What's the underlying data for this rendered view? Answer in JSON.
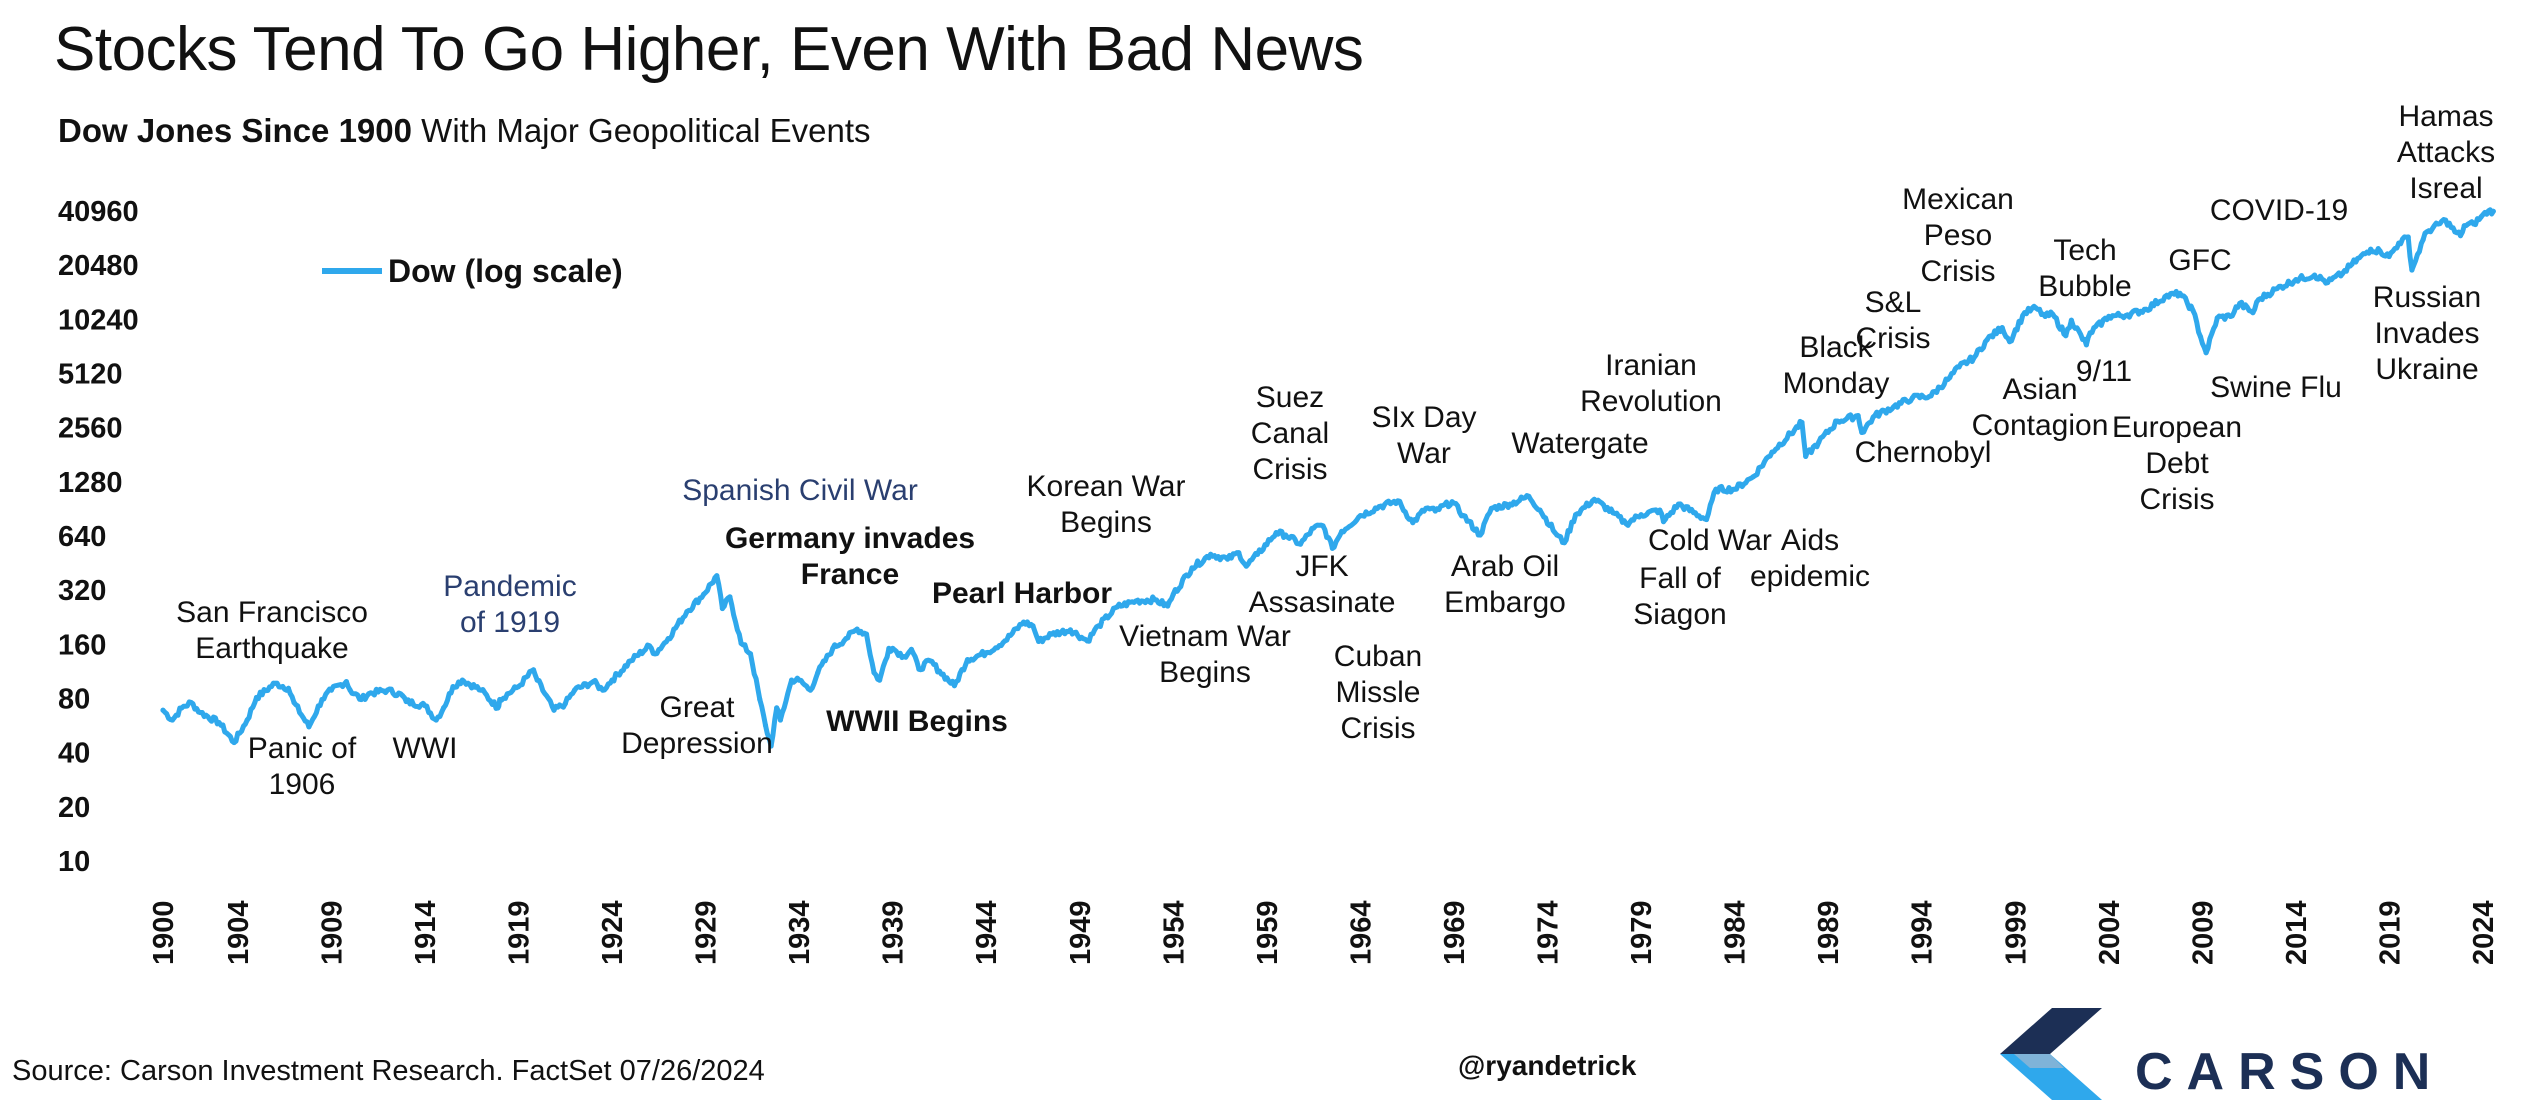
{
  "title": "Stocks Tend To Go Higher, Even With Bad News",
  "subtitle_bold": "Dow Jones Since 1900",
  "subtitle_rest": " With Major Geopolitical Events",
  "source": "Source: Carson Investment Research. FactSet 07/26/2024",
  "handle": "@ryandetrick",
  "logo_text": "CARSON",
  "colors": {
    "line": "#2fa8ec",
    "text": "#111111",
    "blue_text": "#2a3f70",
    "logo_dark": "#1c2f55",
    "logo_light": "#2fa8ec"
  },
  "chart_data": {
    "type": "line",
    "title": "",
    "xlabel": "",
    "ylabel": "",
    "y_scale": "log2",
    "ylim": [
      10,
      40960
    ],
    "xlim": [
      1900,
      2024
    ],
    "y_ticks": [
      "10",
      "20",
      "40",
      "80",
      "160",
      "320",
      "640",
      "1280",
      "2560",
      "5120",
      "10240",
      "20480",
      "40960"
    ],
    "x_ticks": [
      "1900",
      "1904",
      "1909",
      "1914",
      "1919",
      "1924",
      "1929",
      "1934",
      "1939",
      "1944",
      "1949",
      "1954",
      "1959",
      "1964",
      "1969",
      "1974",
      "1979",
      "1984",
      "1989",
      "1994",
      "1999",
      "2004",
      "2009",
      "2014",
      "2019",
      "2024"
    ],
    "legend": {
      "label": "Dow (log scale)",
      "position": "top-left"
    },
    "series": [
      {
        "name": "Dow (log scale)",
        "points": [
          [
            1900,
            68
          ],
          [
            1900.5,
            60
          ],
          [
            1901,
            70
          ],
          [
            1901.5,
            75
          ],
          [
            1902,
            66
          ],
          [
            1903,
            58
          ],
          [
            1903.8,
            45
          ],
          [
            1904.5,
            60
          ],
          [
            1905,
            80
          ],
          [
            1906,
            96
          ],
          [
            1906.7,
            90
          ],
          [
            1907,
            75
          ],
          [
            1907.8,
            55
          ],
          [
            1908.5,
            78
          ],
          [
            1909,
            88
          ],
          [
            1909.8,
            98
          ],
          [
            1910,
            88
          ],
          [
            1910.6,
            78
          ],
          [
            1911,
            84
          ],
          [
            1912,
            88
          ],
          [
            1912.8,
            82
          ],
          [
            1913,
            76
          ],
          [
            1914,
            72
          ],
          [
            1914.6,
            60
          ],
          [
            1915,
            70
          ],
          [
            1915.5,
            92
          ],
          [
            1916,
            100
          ],
          [
            1917,
            88
          ],
          [
            1917.9,
            70
          ],
          [
            1918,
            78
          ],
          [
            1919,
            92
          ],
          [
            1919.8,
            114
          ],
          [
            1920,
            100
          ],
          [
            1920.9,
            68
          ],
          [
            1921.5,
            74
          ],
          [
            1922,
            88
          ],
          [
            1923,
            98
          ],
          [
            1923.5,
            88
          ],
          [
            1924,
            100
          ],
          [
            1925,
            128
          ],
          [
            1926,
            155
          ],
          [
            1926.3,
            140
          ],
          [
            1927,
            170
          ],
          [
            1928,
            240
          ],
          [
            1928.9,
            300
          ],
          [
            1929.6,
            380
          ],
          [
            1929.9,
            250
          ],
          [
            1930.3,
            290
          ],
          [
            1930.9,
            160
          ],
          [
            1931.4,
            140
          ],
          [
            1931.9,
            78
          ],
          [
            1932.2,
            56
          ],
          [
            1932.5,
            43
          ],
          [
            1932.8,
            70
          ],
          [
            1933,
            60
          ],
          [
            1933.6,
            100
          ],
          [
            1934,
            100
          ],
          [
            1934.6,
            88
          ],
          [
            1935,
            110
          ],
          [
            1935.8,
            150
          ],
          [
            1936.5,
            170
          ],
          [
            1937.1,
            192
          ],
          [
            1937.6,
            180
          ],
          [
            1938,
            110
          ],
          [
            1938.3,
            100
          ],
          [
            1938.8,
            150
          ],
          [
            1939,
            150
          ],
          [
            1939.6,
            135
          ],
          [
            1940,
            148
          ],
          [
            1940.4,
            115
          ],
          [
            1941,
            128
          ],
          [
            1941.5,
            112
          ],
          [
            1942.3,
            93
          ],
          [
            1943,
            130
          ],
          [
            1944,
            142
          ],
          [
            1945,
            165
          ],
          [
            1946,
            210
          ],
          [
            1946.5,
            200
          ],
          [
            1946.8,
            164
          ],
          [
            1947.5,
            180
          ],
          [
            1948.5,
            190
          ],
          [
            1949.4,
            165
          ],
          [
            1950,
            200
          ],
          [
            1951,
            255
          ],
          [
            1952,
            275
          ],
          [
            1953,
            280
          ],
          [
            1953.7,
            258
          ],
          [
            1954,
            300
          ],
          [
            1955,
            420
          ],
          [
            1956,
            500
          ],
          [
            1956.9,
            470
          ],
          [
            1957.5,
            510
          ],
          [
            1957.9,
            430
          ],
          [
            1958.5,
            500
          ],
          [
            1959.5,
            660
          ],
          [
            1960,
            640
          ],
          [
            1960.8,
            570
          ],
          [
            1961.5,
            700
          ],
          [
            1962,
            720
          ],
          [
            1962.5,
            540
          ],
          [
            1963,
            670
          ],
          [
            1964,
            820
          ],
          [
            1965,
            920
          ],
          [
            1966,
            990
          ],
          [
            1966.8,
            750
          ],
          [
            1967.5,
            900
          ],
          [
            1968,
            870
          ],
          [
            1968.9,
            980
          ],
          [
            1969.5,
            820
          ],
          [
            1970.4,
            640
          ],
          [
            1971,
            900
          ],
          [
            1972,
            950
          ],
          [
            1973,
            1050
          ],
          [
            1973.6,
            880
          ],
          [
            1974.5,
            640
          ],
          [
            1974.9,
            580
          ],
          [
            1975.5,
            830
          ],
          [
            1976.5,
            1010
          ],
          [
            1977.5,
            850
          ],
          [
            1978.2,
            740
          ],
          [
            1979,
            830
          ],
          [
            1980,
            880
          ],
          [
            1980.2,
            760
          ],
          [
            1981,
            950
          ],
          [
            1982.5,
            780
          ],
          [
            1983,
            1150
          ],
          [
            1984,
            1150
          ],
          [
            1985,
            1350
          ],
          [
            1986,
            1850
          ],
          [
            1987.6,
            2700
          ],
          [
            1987.8,
            1750
          ],
          [
            1988.5,
            2100
          ],
          [
            1989.5,
            2750
          ],
          [
            1990.6,
            2950
          ],
          [
            1990.8,
            2380
          ],
          [
            1991.5,
            2950
          ],
          [
            1992.5,
            3300
          ],
          [
            1993.5,
            3700
          ],
          [
            1994.5,
            3800
          ],
          [
            1995.5,
            4800
          ],
          [
            1996,
            5500
          ],
          [
            1996.8,
            6200
          ],
          [
            1997.5,
            7800
          ],
          [
            1998.3,
            9100
          ],
          [
            1998.7,
            7600
          ],
          [
            1999.5,
            11000
          ],
          [
            2000.1,
            11700
          ],
          [
            2000.6,
            10500
          ],
          [
            2001,
            10800
          ],
          [
            2001.7,
            8200
          ],
          [
            2002,
            10000
          ],
          [
            2002.8,
            7300
          ],
          [
            2003,
            8500
          ],
          [
            2004,
            10500
          ],
          [
            2005,
            10700
          ],
          [
            2006,
            11500
          ],
          [
            2007,
            13500
          ],
          [
            2007.8,
            14100
          ],
          [
            2008.5,
            11300
          ],
          [
            2008.9,
            8100
          ],
          [
            2009.2,
            6600
          ],
          [
            2009.8,
            10300
          ],
          [
            2010.5,
            10500
          ],
          [
            2011,
            12400
          ],
          [
            2011.7,
            11000
          ],
          [
            2012,
            13000
          ],
          [
            2013,
            15000
          ],
          [
            2014,
            16800
          ],
          [
            2015,
            17800
          ],
          [
            2015.7,
            16200
          ],
          [
            2016.5,
            18200
          ],
          [
            2017,
            20500
          ],
          [
            2018,
            24800
          ],
          [
            2018.5,
            24200
          ],
          [
            2018.98,
            22600
          ],
          [
            2019.5,
            26800
          ],
          [
            2020,
            29000
          ],
          [
            2020.2,
            19000
          ],
          [
            2020.8,
            28000
          ],
          [
            2021,
            31000
          ],
          [
            2022,
            36000
          ],
          [
            2022.5,
            31000
          ],
          [
            2022.8,
            29500
          ],
          [
            2023,
            33500
          ],
          [
            2023.5,
            34300
          ],
          [
            2023.9,
            37500
          ],
          [
            2024.3,
            40500
          ],
          [
            2024.55,
            40300
          ]
        ]
      }
    ],
    "annotations": [
      {
        "text": "San Francisco\nEarthquake",
        "style": "normal"
      },
      {
        "text": "Panic of\n1906",
        "style": "normal"
      },
      {
        "text": "WWI",
        "style": "normal"
      },
      {
        "text": "Pandemic\nof 1919",
        "style": "blue"
      },
      {
        "text": "Spanish Civil War",
        "style": "blue"
      },
      {
        "text": "Great\nDepression",
        "style": "normal"
      },
      {
        "text": "Germany invades\nFrance",
        "style": "bold"
      },
      {
        "text": "WWII Begins",
        "style": "bold"
      },
      {
        "text": "Pearl Harbor",
        "style": "bold"
      },
      {
        "text": "Korean War\nBegins",
        "style": "normal"
      },
      {
        "text": "Vietnam War\nBegins",
        "style": "normal"
      },
      {
        "text": "Suez\nCanal\nCrisis",
        "style": "normal"
      },
      {
        "text": "JFK\nAssasinate",
        "style": "normal"
      },
      {
        "text": "Cuban\nMissle\nCrisis",
        "style": "normal"
      },
      {
        "text": "SIx Day\nWar",
        "style": "normal"
      },
      {
        "text": "Arab Oil\nEmbargo",
        "style": "normal"
      },
      {
        "text": "Watergate",
        "style": "normal"
      },
      {
        "text": "Iranian\nRevolution",
        "style": "normal"
      },
      {
        "text": "Cold War",
        "style": "normal"
      },
      {
        "text": "Fall of\nSiagon",
        "style": "normal"
      },
      {
        "text": "Aids\nepidemic",
        "style": "normal"
      },
      {
        "text": "Black\nMonday",
        "style": "normal"
      },
      {
        "text": "S&L\nCrisis",
        "style": "normal"
      },
      {
        "text": "Chernobyl",
        "style": "normal"
      },
      {
        "text": "Mexican\nPeso\nCrisis",
        "style": "normal"
      },
      {
        "text": "Asian\nContagion",
        "style": "normal"
      },
      {
        "text": "Tech\nBubble",
        "style": "normal"
      },
      {
        "text": "9/11",
        "style": "normal"
      },
      {
        "text": "European\nDebt\nCrisis",
        "style": "normal"
      },
      {
        "text": "GFC",
        "style": "normal"
      },
      {
        "text": "Swine Flu",
        "style": "normal"
      },
      {
        "text": "COVID-19",
        "style": "normal"
      },
      {
        "text": "Hamas\nAttacks\nIsreal",
        "style": "normal"
      },
      {
        "text": "Russian\nInvades\nUkraine",
        "style": "normal"
      }
    ]
  }
}
